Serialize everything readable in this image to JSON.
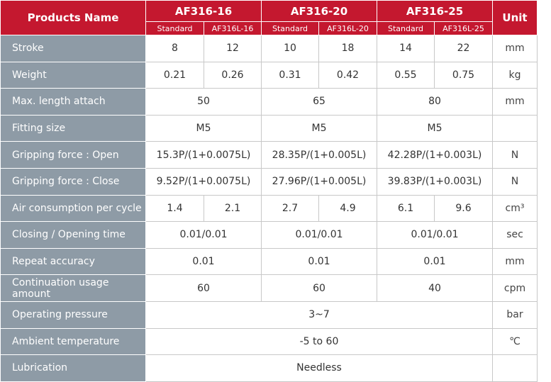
{
  "header": {
    "products_name": "Products Name",
    "unit": "Unit",
    "models": [
      {
        "name": "AF316-16",
        "variants": [
          "Standard",
          "AF316L-16"
        ]
      },
      {
        "name": "AF316-20",
        "variants": [
          "Standard",
          "AF316L-20"
        ]
      },
      {
        "name": "AF316-25",
        "variants": [
          "Standard",
          "AF316L-25"
        ]
      }
    ]
  },
  "table": {
    "rows": [
      {
        "label": "Stroke",
        "cells": [
          "8",
          "12",
          "10",
          "18",
          "14",
          "22"
        ],
        "unit": "mm"
      },
      {
        "label": "Weight",
        "cells": [
          "0.21",
          "0.26",
          "0.31",
          "0.42",
          "0.55",
          "0.75"
        ],
        "unit": "kg"
      },
      {
        "label": "Max. length attach",
        "cells": [
          "50",
          "65",
          "80"
        ],
        "unit": "mm"
      },
      {
        "label": "Fitting size",
        "cells": [
          "M5",
          "M5",
          "M5"
        ]
      },
      {
        "label": "Gripping force : Open",
        "cells": [
          "15.3P/(1+0.0075L)",
          "28.35P/(1+0.005L)",
          "42.28P/(1+0.003L)"
        ],
        "unit": "N"
      },
      {
        "label": "Gripping force : Close",
        "cells": [
          "9.52P/(1+0.0075L)",
          "27.96P/(1+0.005L)",
          "39.83P/(1+0.003L)"
        ],
        "unit": "N"
      },
      {
        "label": "Air consumption per cycle",
        "cells": [
          "1.4",
          "2.1",
          "2.7",
          "4.9",
          "6.1",
          "9.6"
        ],
        "unit": "cm³"
      },
      {
        "label": "Closing / Opening time",
        "cells": [
          "0.01/0.01",
          "0.01/0.01",
          "0.01/0.01"
        ],
        "unit": "sec"
      },
      {
        "label": "Repeat accuracy",
        "cells": [
          "0.01",
          "0.01",
          "0.01"
        ],
        "unit": "mm"
      },
      {
        "label": "Continuation usage amount",
        "cells": [
          "60",
          "60",
          "40"
        ],
        "unit": "cpm"
      },
      {
        "label": "Operating pressure",
        "cells": [
          "3~7"
        ],
        "unit": "bar"
      },
      {
        "label": "Ambient temperature",
        "cells": [
          "-5 to 60"
        ],
        "unit": "℃"
      },
      {
        "label": "Lubrication",
        "cells": [
          "Needless"
        ]
      }
    ]
  }
}
